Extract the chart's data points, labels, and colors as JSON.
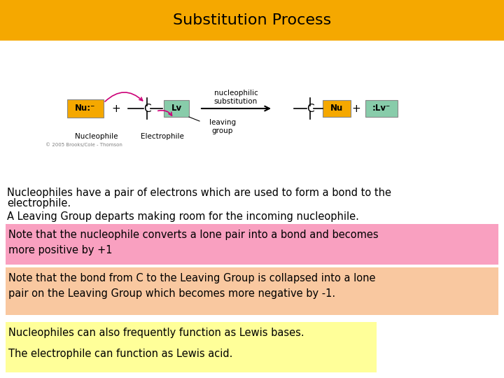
{
  "title": "Substitution Process",
  "title_bg_color": "#F5A800",
  "title_text_color": "#000000",
  "title_fontsize": 16,
  "slide_bg_color": "#FFFFFF",
  "line1a": "Nucleophiles have a pair of electrons which are used to form a bond to the",
  "line1b": "electrophile.",
  "line2": "A Leaving Group departs making room for the incoming nucleophile.",
  "box1_text": "Note that the nucleophile converts a lone pair into a bond and becomes\nmore positive by +1",
  "box1_bg": "#F9A0C0",
  "box2_text": "Note that the bond from C to the Leaving Group is collapsed into a lone\npair on the Leaving Group which becomes more negative by -1.",
  "box2_bg": "#F9C8A0",
  "box3_line1": "Nucleophiles can also frequently function as Lewis bases.",
  "box3_line2": "The electrophile can function as Lewis acid.",
  "box3_bg": "#FFFF99",
  "text_fontsize": 10.5,
  "nu_color": "#F5A800",
  "lv_color": "#88CCAA",
  "arrow_color": "#CC0077",
  "diagram_copyright": "© 2005 Brooks/Cole - Thomson"
}
